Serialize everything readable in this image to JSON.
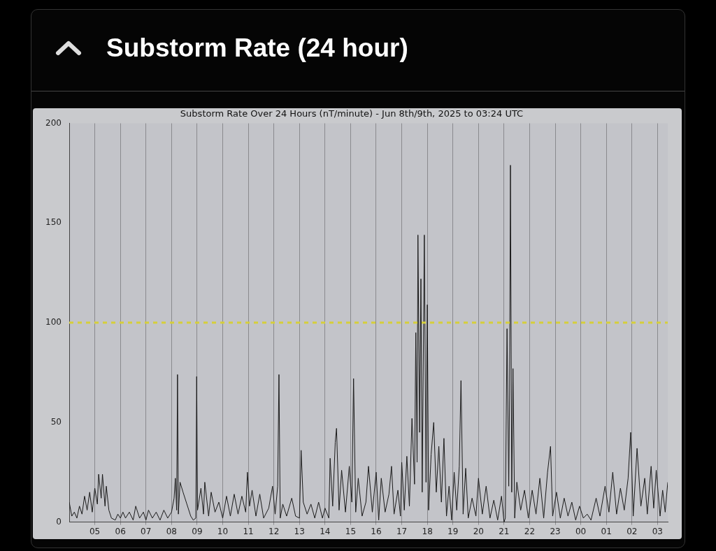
{
  "chart_data": {
    "type": "line",
    "title": "Substorm Rate (24 hour)",
    "subtitle": "Substorm Rate Over 24 Hours (nT/minute) - Jun 8th/9th, 2025 to 03:24 UTC",
    "x": [
      "2025-06-08T04:00",
      "2025-06-08T04:06",
      "2025-06-08T04:12",
      "2025-06-08T04:18",
      "2025-06-08T04:24",
      "2025-06-08T04:30",
      "2025-06-08T04:36",
      "2025-06-08T04:42",
      "2025-06-08T04:48",
      "2025-06-08T04:54",
      "2025-06-08T05:00",
      "2025-06-08T05:06",
      "2025-06-08T05:09",
      "2025-06-08T05:15",
      "2025-06-08T05:18",
      "2025-06-08T05:24",
      "2025-06-08T05:27",
      "2025-06-08T05:33",
      "2025-06-08T05:39",
      "2025-06-08T05:48",
      "2025-06-08T05:54",
      "2025-06-08T06:00",
      "2025-06-08T06:06",
      "2025-06-08T06:12",
      "2025-06-08T06:21",
      "2025-06-08T06:30",
      "2025-06-08T06:36",
      "2025-06-08T06:45",
      "2025-06-08T06:54",
      "2025-06-08T07:00",
      "2025-06-08T07:06",
      "2025-06-08T07:15",
      "2025-06-08T07:24",
      "2025-06-08T07:33",
      "2025-06-08T07:42",
      "2025-06-08T07:51",
      "2025-06-08T08:00",
      "2025-06-08T08:06",
      "2025-06-08T08:09",
      "2025-06-08T08:12",
      "2025-06-08T08:14",
      "2025-06-08T08:16",
      "2025-06-08T08:20",
      "2025-06-08T08:27",
      "2025-06-08T08:36",
      "2025-06-08T08:45",
      "2025-06-08T08:51",
      "2025-06-08T08:57",
      "2025-06-08T08:59",
      "2025-06-08T09:01",
      "2025-06-08T09:09",
      "2025-06-08T09:15",
      "2025-06-08T09:18",
      "2025-06-08T09:27",
      "2025-06-08T09:33",
      "2025-06-08T09:42",
      "2025-06-08T09:51",
      "2025-06-08T10:00",
      "2025-06-08T10:09",
      "2025-06-08T10:18",
      "2025-06-08T10:27",
      "2025-06-08T10:36",
      "2025-06-08T10:45",
      "2025-06-08T10:54",
      "2025-06-08T10:58",
      "2025-06-08T11:03",
      "2025-06-08T11:09",
      "2025-06-08T11:18",
      "2025-06-08T11:27",
      "2025-06-08T11:36",
      "2025-06-08T11:48",
      "2025-06-08T11:57",
      "2025-06-08T12:03",
      "2025-06-08T12:09",
      "2025-06-08T12:12",
      "2025-06-08T12:15",
      "2025-06-08T12:21",
      "2025-06-08T12:30",
      "2025-06-08T12:42",
      "2025-06-08T12:51",
      "2025-06-08T13:00",
      "2025-06-08T13:04",
      "2025-06-08T13:09",
      "2025-06-08T13:18",
      "2025-06-08T13:27",
      "2025-06-08T13:36",
      "2025-06-08T13:45",
      "2025-06-08T13:54",
      "2025-06-08T14:00",
      "2025-06-08T14:09",
      "2025-06-08T14:12",
      "2025-06-08T14:18",
      "2025-06-08T14:24",
      "2025-06-08T14:27",
      "2025-06-08T14:33",
      "2025-06-08T14:39",
      "2025-06-08T14:48",
      "2025-06-08T14:57",
      "2025-06-08T15:03",
      "2025-06-08T15:07",
      "2025-06-08T15:12",
      "2025-06-08T15:18",
      "2025-06-08T15:27",
      "2025-06-08T15:36",
      "2025-06-08T15:42",
      "2025-06-08T15:51",
      "2025-06-08T16:00",
      "2025-06-08T16:06",
      "2025-06-08T16:12",
      "2025-06-08T16:21",
      "2025-06-08T16:30",
      "2025-06-08T16:36",
      "2025-06-08T16:42",
      "2025-06-08T16:51",
      "2025-06-08T16:57",
      "2025-06-08T17:00",
      "2025-06-08T17:06",
      "2025-06-08T17:12",
      "2025-06-08T17:18",
      "2025-06-08T17:24",
      "2025-06-08T17:30",
      "2025-06-08T17:33",
      "2025-06-08T17:36",
      "2025-06-08T17:38",
      "2025-06-08T17:42",
      "2025-06-08T17:45",
      "2025-06-08T17:48",
      "2025-06-08T17:53",
      "2025-06-08T17:57",
      "2025-06-08T18:00",
      "2025-06-08T18:03",
      "2025-06-08T18:09",
      "2025-06-08T18:15",
      "2025-06-08T18:21",
      "2025-06-08T18:27",
      "2025-06-08T18:33",
      "2025-06-08T18:39",
      "2025-06-08T18:45",
      "2025-06-08T18:51",
      "2025-06-08T18:57",
      "2025-06-08T19:03",
      "2025-06-08T19:09",
      "2025-06-08T19:15",
      "2025-06-08T19:19",
      "2025-06-08T19:24",
      "2025-06-08T19:30",
      "2025-06-08T19:36",
      "2025-06-08T19:45",
      "2025-06-08T19:54",
      "2025-06-08T20:00",
      "2025-06-08T20:09",
      "2025-06-08T20:18",
      "2025-06-08T20:27",
      "2025-06-08T20:36",
      "2025-06-08T20:45",
      "2025-06-08T20:54",
      "2025-06-08T21:00",
      "2025-06-08T21:03",
      "2025-06-08T21:07",
      "2025-06-08T21:11",
      "2025-06-08T21:13",
      "2025-06-08T21:15",
      "2025-06-08T21:18",
      "2025-06-08T21:21",
      "2025-06-08T21:25",
      "2025-06-08T21:30",
      "2025-06-08T21:39",
      "2025-06-08T21:48",
      "2025-06-08T21:57",
      "2025-06-08T22:06",
      "2025-06-08T22:15",
      "2025-06-08T22:24",
      "2025-06-08T22:33",
      "2025-06-08T22:42",
      "2025-06-08T22:49",
      "2025-06-08T22:54",
      "2025-06-08T23:03",
      "2025-06-08T23:12",
      "2025-06-08T23:21",
      "2025-06-08T23:30",
      "2025-06-08T23:39",
      "2025-06-08T23:48",
      "2025-06-08T23:57",
      "2025-06-09T00:06",
      "2025-06-09T00:15",
      "2025-06-09T00:24",
      "2025-06-09T00:36",
      "2025-06-09T00:45",
      "2025-06-09T00:57",
      "2025-06-09T01:06",
      "2025-06-09T01:15",
      "2025-06-09T01:24",
      "2025-06-09T01:33",
      "2025-06-09T01:42",
      "2025-06-09T01:51",
      "2025-06-09T01:57",
      "2025-06-09T02:03",
      "2025-06-09T02:12",
      "2025-06-09T02:21",
      "2025-06-09T02:30",
      "2025-06-09T02:36",
      "2025-06-09T02:45",
      "2025-06-09T02:51",
      "2025-06-09T02:57",
      "2025-06-09T03:06",
      "2025-06-09T03:12",
      "2025-06-09T03:18",
      "2025-06-09T03:24"
    ],
    "series": [
      {
        "color": "#1a1a1a",
        "values": [
          10,
          3,
          5,
          2,
          8,
          4,
          13,
          6,
          15,
          5,
          17,
          9,
          24,
          12,
          24,
          8,
          18,
          6,
          2,
          1,
          4,
          2,
          5,
          2,
          5,
          1,
          8,
          2,
          5,
          1,
          6,
          2,
          5,
          1,
          6,
          2,
          5,
          12,
          22,
          6,
          74,
          4,
          20,
          15,
          9,
          3,
          1,
          2,
          73,
          6,
          17,
          4,
          20,
          3,
          15,
          5,
          10,
          2,
          13,
          3,
          14,
          4,
          13,
          5,
          25,
          8,
          16,
          3,
          14,
          2,
          7,
          18,
          4,
          18,
          74,
          2,
          9,
          3,
          12,
          3,
          2,
          36,
          10,
          4,
          9,
          2,
          10,
          2,
          7,
          2,
          32,
          8,
          40,
          47,
          6,
          26,
          5,
          28,
          10,
          72,
          5,
          22,
          3,
          10,
          28,
          5,
          25,
          1,
          22,
          5,
          14,
          28,
          4,
          16,
          3,
          30,
          6,
          33,
          8,
          52,
          19,
          95,
          30,
          144,
          45,
          122,
          15,
          144,
          20,
          109,
          6,
          34,
          50,
          15,
          38,
          10,
          42,
          3,
          18,
          1,
          25,
          6,
          28,
          71,
          4,
          27,
          2,
          12,
          3,
          22,
          4,
          18,
          2,
          11,
          1,
          13,
          0,
          2,
          97,
          18,
          65,
          179,
          15,
          77,
          2,
          20,
          6,
          16,
          2,
          16,
          4,
          22,
          2,
          25,
          38,
          3,
          15,
          2,
          12,
          3,
          10,
          1,
          8,
          2,
          4,
          1,
          12,
          3,
          18,
          5,
          25,
          4,
          17,
          6,
          22,
          45,
          3,
          37,
          8,
          22,
          4,
          28,
          7,
          26,
          3,
          16,
          5,
          20
        ]
      }
    ],
    "xlim": [
      "2025-06-08T04:00",
      "2025-06-09T03:24"
    ],
    "xticks": [
      {
        "value": "2025-06-08T05:00",
        "label": "05"
      },
      {
        "value": "2025-06-08T06:00",
        "label": "06"
      },
      {
        "value": "2025-06-08T07:00",
        "label": "07"
      },
      {
        "value": "2025-06-08T08:00",
        "label": "08"
      },
      {
        "value": "2025-06-08T09:00",
        "label": "09"
      },
      {
        "value": "2025-06-08T10:00",
        "label": "10"
      },
      {
        "value": "2025-06-08T11:00",
        "label": "11"
      },
      {
        "value": "2025-06-08T12:00",
        "label": "12"
      },
      {
        "value": "2025-06-08T13:00",
        "label": "13"
      },
      {
        "value": "2025-06-08T14:00",
        "label": "14"
      },
      {
        "value": "2025-06-08T15:00",
        "label": "15"
      },
      {
        "value": "2025-06-08T16:00",
        "label": "16"
      },
      {
        "value": "2025-06-08T17:00",
        "label": "17"
      },
      {
        "value": "2025-06-08T18:00",
        "label": "18"
      },
      {
        "value": "2025-06-08T19:00",
        "label": "19"
      },
      {
        "value": "2025-06-08T20:00",
        "label": "20"
      },
      {
        "value": "2025-06-08T21:00",
        "label": "21"
      },
      {
        "value": "2025-06-08T22:00",
        "label": "22"
      },
      {
        "value": "2025-06-08T23:00",
        "label": "23"
      },
      {
        "value": "2025-06-09T00:00",
        "label": "00"
      },
      {
        "value": "2025-06-09T01:00",
        "label": "01"
      },
      {
        "value": "2025-06-09T02:00",
        "label": "02"
      },
      {
        "value": "2025-06-09T03:00",
        "label": "03"
      }
    ],
    "ylim": [
      0,
      200
    ],
    "yticks": [
      0,
      50,
      100,
      150,
      200
    ],
    "ref_lines": [
      {
        "axis": "y",
        "value": 100,
        "color": "#d6cf3a",
        "line_style": "dashed"
      }
    ],
    "grid": "x",
    "legend": false,
    "marker": "none",
    "line_style": "solid"
  }
}
